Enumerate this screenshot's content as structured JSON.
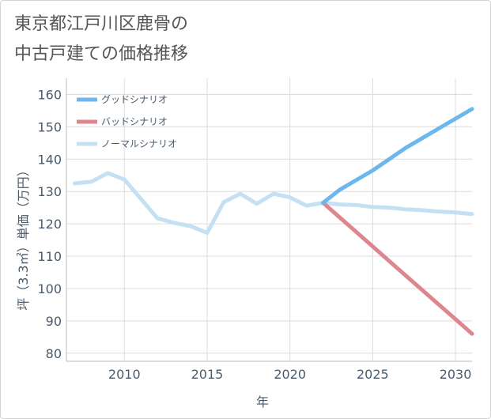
{
  "title_lines": [
    "東京都江戸川区鹿骨の",
    "中古戸建ての価格推移"
  ],
  "chart_data": {
    "type": "line",
    "title": "東京都江戸川区鹿骨の中古戸建ての価格推移",
    "xlabel": "年",
    "ylabel": "坪（3.3㎡）単価（万円）",
    "xlim": [
      2006.5,
      2031
    ],
    "ylim": [
      77.5,
      165
    ],
    "xticks": [
      2010,
      2015,
      2020,
      2025,
      2030
    ],
    "yticks": [
      80,
      90,
      100,
      110,
      120,
      130,
      140,
      150,
      160
    ],
    "grid": true,
    "legend_position": "top-left",
    "series": [
      {
        "name": "グッドシナリオ",
        "color": "#6cb8ec",
        "x": [
          2022,
          2023,
          2024,
          2025,
          2026,
          2027,
          2028,
          2029,
          2030,
          2031
        ],
        "y": [
          126.5,
          130.5,
          133.5,
          136.5,
          140,
          143.5,
          146.5,
          149.5,
          152.5,
          155.5
        ]
      },
      {
        "name": "バッドシナリオ",
        "color": "#de868e",
        "x": [
          2022,
          2023,
          2024,
          2025,
          2026,
          2027,
          2028,
          2029,
          2030,
          2031
        ],
        "y": [
          126.5,
          122,
          117.5,
          113,
          108.5,
          104,
          99.5,
          95,
          90.5,
          86
        ]
      },
      {
        "name": "ノーマルシナリオ",
        "color": "#c5e0f2",
        "x": [
          2007,
          2008,
          2009,
          2010,
          2011,
          2012,
          2013,
          2014,
          2015,
          2016,
          2017,
          2018,
          2019,
          2020,
          2021,
          2022,
          2023,
          2024,
          2025,
          2026,
          2027,
          2028,
          2029,
          2030,
          2031
        ],
        "y": [
          132.5,
          133,
          135.7,
          133.7,
          127.7,
          121.7,
          120.3,
          119.3,
          117.2,
          126.7,
          129.3,
          126.2,
          129.3,
          128.2,
          125.6,
          126.5,
          126,
          125.8,
          125.2,
          125,
          124.5,
          124.2,
          123.8,
          123.5,
          123
        ]
      }
    ]
  }
}
